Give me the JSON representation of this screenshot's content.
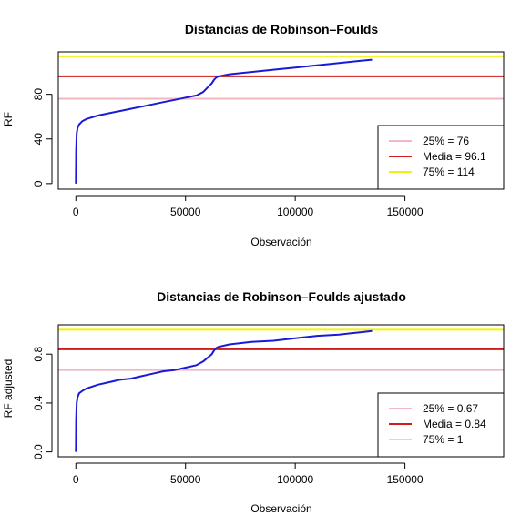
{
  "chart_data": [
    {
      "type": "line",
      "title": "Distancias de Robinson–Foulds",
      "xlabel": "Observación",
      "ylabel": "RF",
      "xlim": [
        -8000,
        195000
      ],
      "ylim": [
        -5,
        118
      ],
      "xticks": [
        0,
        50000,
        100000,
        150000
      ],
      "xtick_labels": [
        "0",
        "50000",
        "100000",
        "150000"
      ],
      "yticks": [
        0,
        40,
        80
      ],
      "ytick_labels": [
        "0",
        "40",
        "80"
      ],
      "series_color": "#1a1ad6",
      "curve": {
        "x": [
          0,
          150,
          400,
          800,
          1500,
          3000,
          5000,
          10000,
          15000,
          20000,
          25000,
          30000,
          35000,
          40000,
          45000,
          50000,
          55000,
          58000,
          60000,
          62000,
          63000,
          64000,
          65000,
          70000,
          80000,
          90000,
          100000,
          110000,
          120000,
          125000,
          130000,
          135000
        ],
        "y": [
          0,
          30,
          45,
          50,
          53,
          56,
          58,
          61,
          63,
          65,
          67,
          69,
          71,
          73,
          75,
          77,
          79,
          82,
          86,
          90,
          93,
          95,
          96,
          98,
          100,
          102,
          104,
          106,
          108,
          109,
          110,
          111
        ]
      },
      "hlines": [
        {
          "label": "25% = 76",
          "value": 76,
          "color": "#f4b6c2"
        },
        {
          "label": "Media = 96.1",
          "value": 96.1,
          "color": "#d11a1a"
        },
        {
          "label": "75% = 114",
          "value": 114,
          "color": "#f2f20a"
        }
      ],
      "legend_position": "bottom-right"
    },
    {
      "type": "line",
      "title": "Distancias de Robinson–Foulds ajustado",
      "xlabel": "Observación",
      "ylabel": "RF adjusted",
      "xlim": [
        -8000,
        195000
      ],
      "ylim": [
        -0.04,
        1.04
      ],
      "xticks": [
        0,
        50000,
        100000,
        150000
      ],
      "xtick_labels": [
        "0",
        "50000",
        "100000",
        "150000"
      ],
      "yticks": [
        0.0,
        0.4,
        0.8
      ],
      "ytick_labels": [
        "0.0",
        "0.4",
        "0.8"
      ],
      "series_color": "#1a1ad6",
      "curve": {
        "x": [
          0,
          150,
          400,
          800,
          1500,
          3000,
          5000,
          10000,
          15000,
          20000,
          25000,
          30000,
          35000,
          40000,
          45000,
          50000,
          55000,
          58000,
          60000,
          62000,
          63000,
          64000,
          65000,
          70000,
          80000,
          90000,
          100000,
          110000,
          120000,
          125000,
          130000,
          135000
        ],
        "y": [
          0,
          0.27,
          0.4,
          0.45,
          0.48,
          0.5,
          0.52,
          0.55,
          0.57,
          0.59,
          0.6,
          0.62,
          0.64,
          0.66,
          0.67,
          0.69,
          0.71,
          0.74,
          0.77,
          0.8,
          0.83,
          0.85,
          0.86,
          0.88,
          0.9,
          0.91,
          0.93,
          0.95,
          0.96,
          0.97,
          0.98,
          0.99
        ]
      },
      "hlines": [
        {
          "label": "25% = 0.67",
          "value": 0.67,
          "color": "#f4b6c2"
        },
        {
          "label": "Media = 0.84",
          "value": 0.84,
          "color": "#d11a1a"
        },
        {
          "label": "75% = 1",
          "value": 1.0,
          "color": "#f2f20a"
        }
      ],
      "legend_position": "bottom-right"
    }
  ]
}
